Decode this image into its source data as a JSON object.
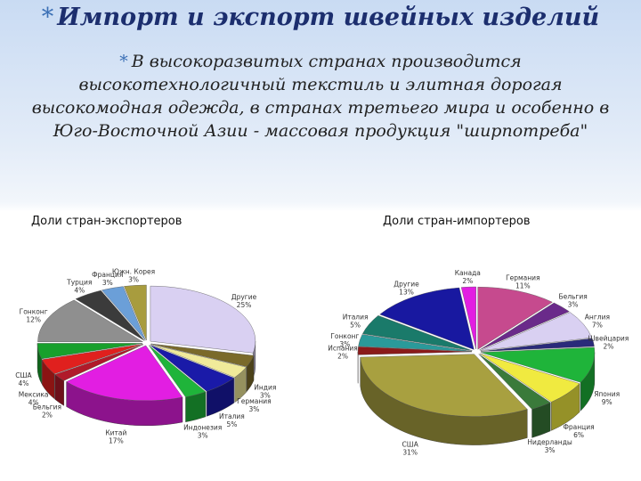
{
  "slide": {
    "title": "Импорт и экспорт швейных изделий",
    "body": "В высокоразвитых странах производится высокотехнологичный текстиль и элитная дорогая высокомодная одежда, в странах третьего мира и особенно в Юго-Восточной Азии - массовая продукция \"ширпотреба\""
  },
  "chart_data": [
    {
      "type": "pie",
      "title": "Доли стран-экспортеров",
      "categories": [
        "Другие",
        "Индия",
        "Германия",
        "Италия",
        "Индонезия",
        "Китай",
        "Бельгия",
        "Мексика",
        "США",
        "Гонконг",
        "Турция",
        "Франция",
        "Южн. Корея"
      ],
      "values": [
        25,
        3,
        3,
        5,
        3,
        17,
        2,
        4,
        4,
        12,
        4,
        3,
        3
      ],
      "value_labels": [
        "25%",
        "3%",
        "3%",
        "5%",
        "3%",
        "17%",
        "2%",
        "4%",
        "4%",
        "12%",
        "4%",
        "3%",
        "3%"
      ],
      "colors": [
        "#d9d0f2",
        "#7a6a2a",
        "#f0ea9a",
        "#1a1aa8",
        "#1fb43a",
        "#e21ee2",
        "#b01a2a",
        "#e0201e",
        "#18a02c",
        "#8f8f8f",
        "#3b3b3b",
        "#6b9fd8",
        "#a89c3e"
      ]
    },
    {
      "type": "pie",
      "title": "Доли стран-импортеров",
      "categories": [
        "Германия",
        "Бельгия",
        "Англия",
        "Швейцария",
        "Япония",
        "Франция",
        "Нидерланды",
        "США",
        "Испания",
        "Гонконг",
        "Италия",
        "Другие",
        "Канада"
      ],
      "values": [
        11,
        3,
        7,
        2,
        9,
        6,
        3,
        31,
        2,
        3,
        5,
        13,
        2
      ],
      "value_labels": [
        "11%",
        "3%",
        "7%",
        "2%",
        "9%",
        "6%",
        "3%",
        "31%",
        "2%",
        "3%",
        "5%",
        "13%",
        "2%"
      ],
      "colors": [
        "#c64a8e",
        "#6a2a8a",
        "#d9d0f2",
        "#2a2a7a",
        "#1fb43a",
        "#f0ea40",
        "#3a7a3a",
        "#a8a040",
        "#8a1a1a",
        "#2a9a9a",
        "#1a7a6a",
        "#1818a0",
        "#e21ee2"
      ]
    }
  ]
}
